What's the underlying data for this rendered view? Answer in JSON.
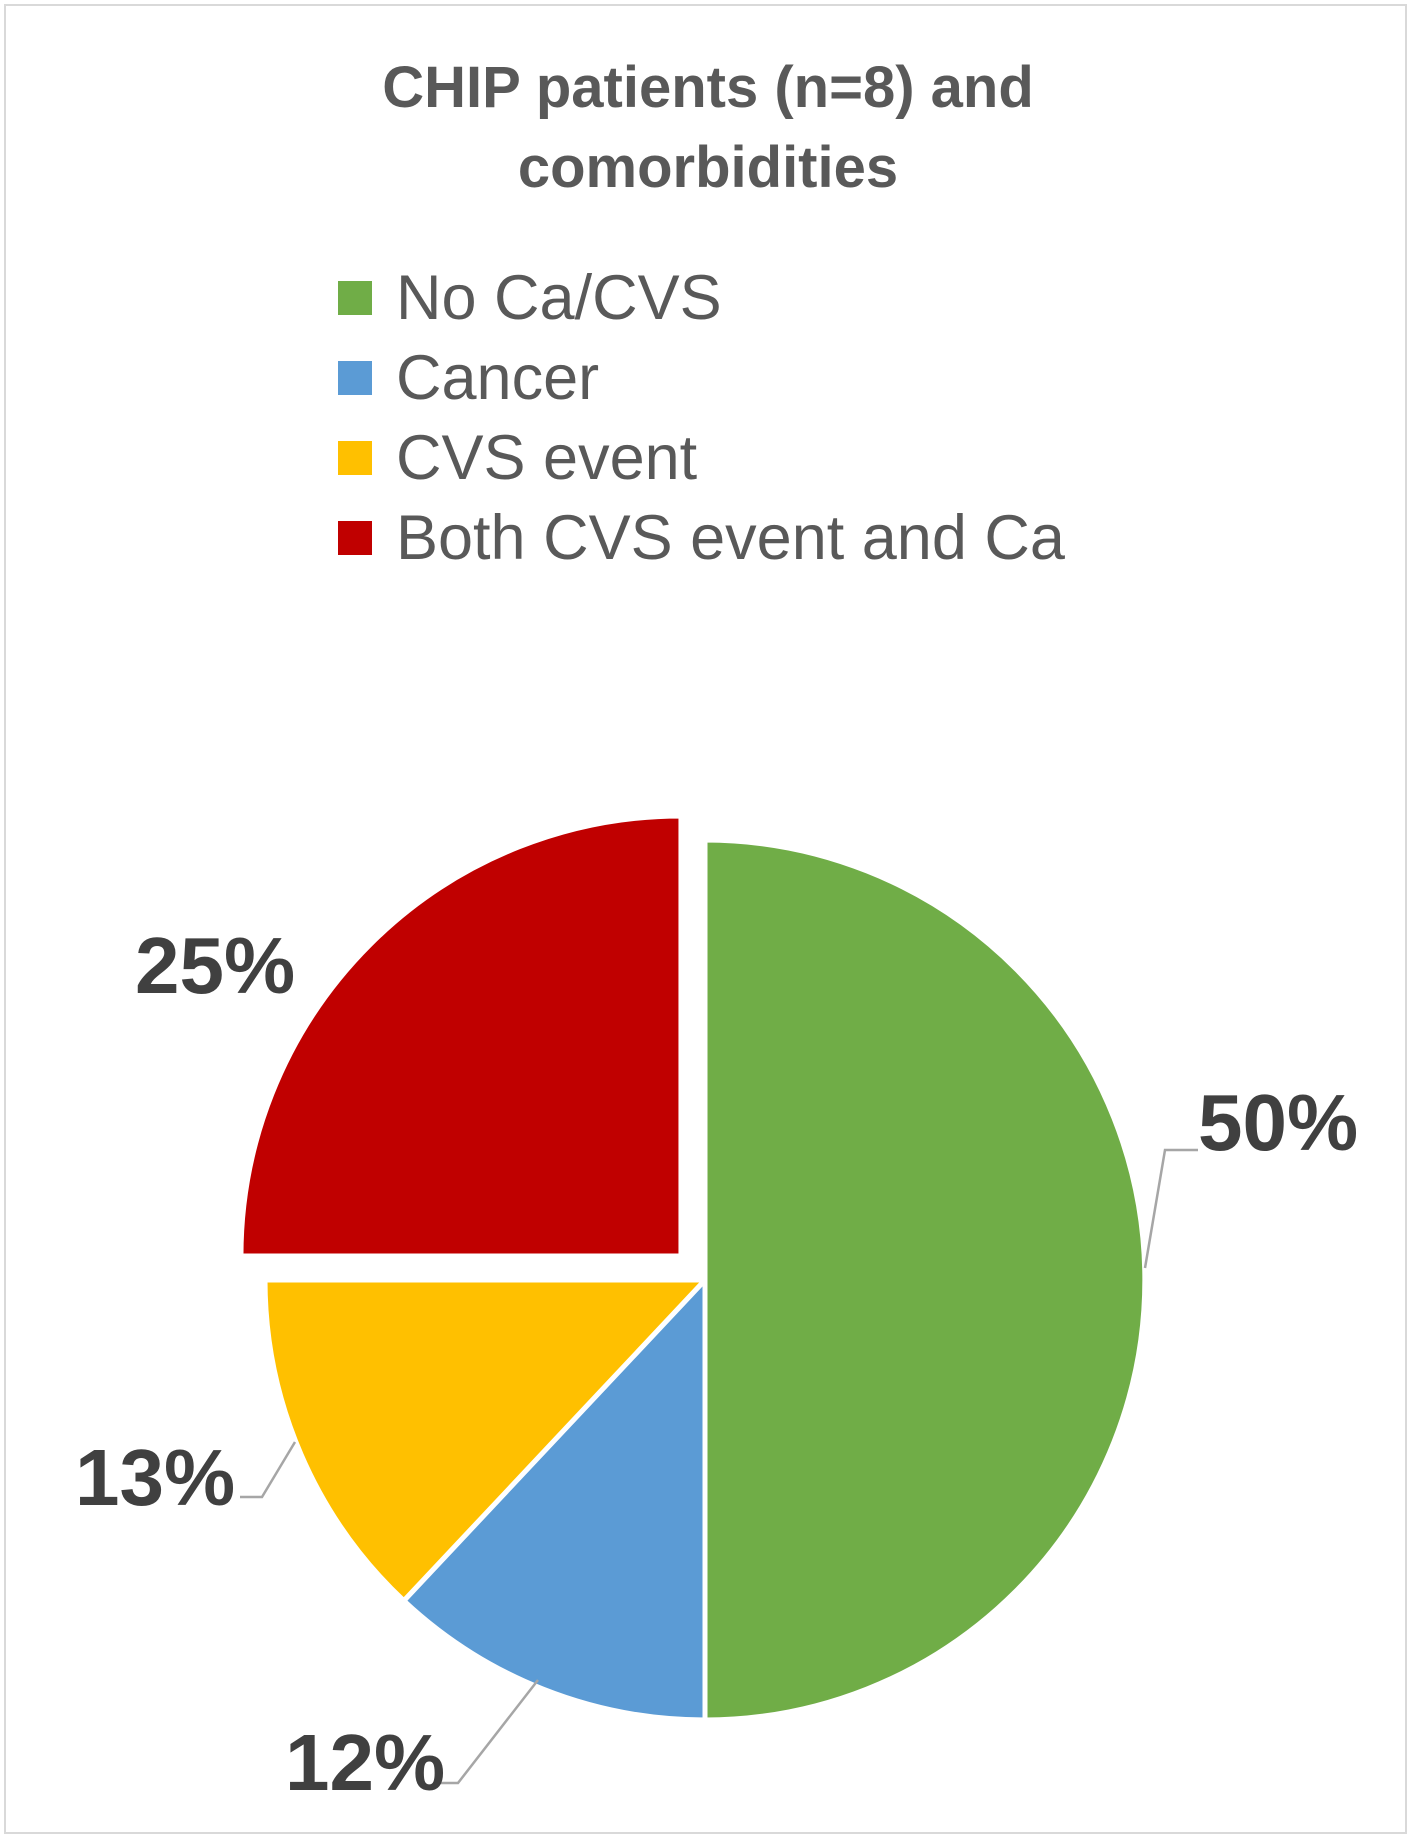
{
  "chart_data": {
    "type": "pie",
    "title": [
      "CHIP patients (n=8) and",
      "comorbidities"
    ],
    "legend_position": "top",
    "slices": [
      {
        "label": "No Ca/CVS",
        "value": 50,
        "value_label": "50%",
        "color": "#70ad47"
      },
      {
        "label": "Cancer",
        "value": 12,
        "value_label": "12%",
        "color": "#5b9bd5"
      },
      {
        "label": "CVS event",
        "value": 13,
        "value_label": "13%",
        "color": "#ffc000"
      },
      {
        "label": "Both CVS event and Ca",
        "value": 25,
        "value_label": "25%",
        "color": "#c00000"
      }
    ],
    "exploded_slice": "Both CVS event and Ca"
  }
}
